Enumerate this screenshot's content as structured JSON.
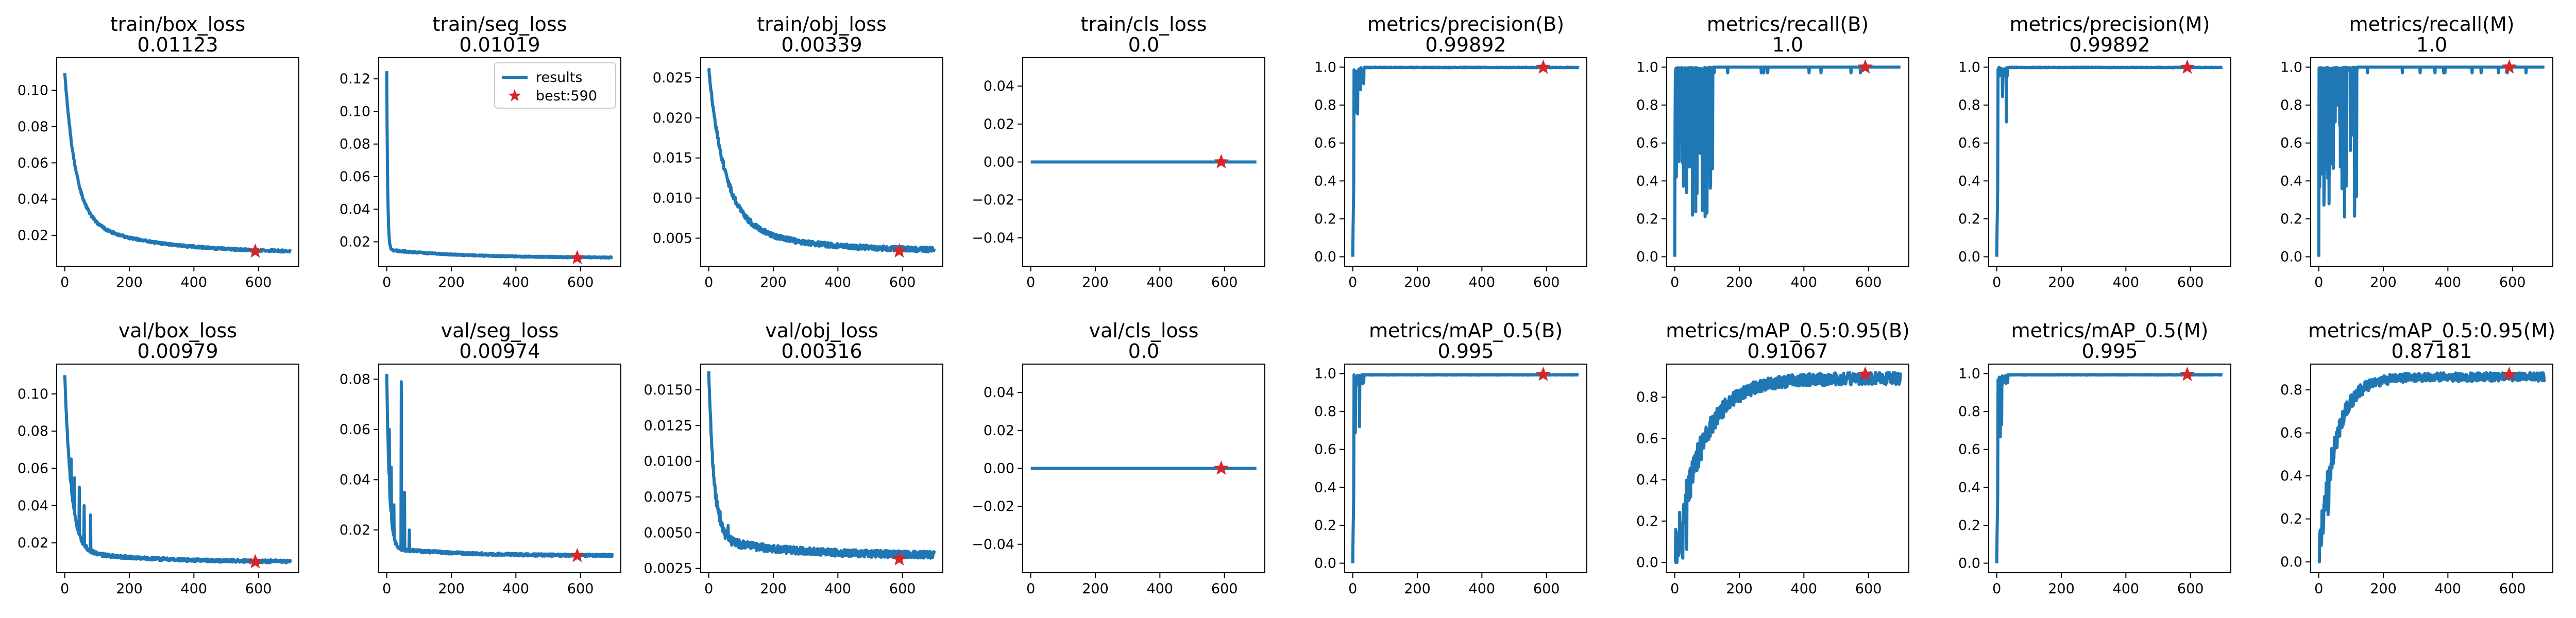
{
  "figure": {
    "series_color": "#1f77b4",
    "best_marker_color": "#d62728",
    "legend": {
      "results_label": "results",
      "best_label": "best:590"
    }
  },
  "chart_data": [
    {
      "type": "line",
      "title": "train/box_loss",
      "subtitle": "0.01123",
      "xlim": [
        -25,
        725
      ],
      "ylim": [
        0.003,
        0.118
      ],
      "xticks": [
        0,
        200,
        400,
        600
      ],
      "yticks": [
        0.02,
        0.04,
        0.06,
        0.08,
        0.1
      ],
      "tick_labels_y": [
        "0.02",
        "0.04",
        "0.06",
        "0.08",
        "0.10"
      ],
      "pattern": "decay",
      "params": {
        "peak": 0.11,
        "end": 0.0105,
        "k": 0.03,
        "tail": 0.02,
        "noise": 0.0006
      },
      "best": {
        "x": 590,
        "y": 0.01123
      },
      "show_legend": false
    },
    {
      "type": "line",
      "title": "train/seg_loss",
      "subtitle": "0.01019",
      "xlim": [
        -25,
        725
      ],
      "ylim": [
        0.005,
        0.133
      ],
      "xticks": [
        0,
        200,
        400,
        600
      ],
      "yticks": [
        0.02,
        0.04,
        0.06,
        0.08,
        0.1,
        0.12
      ],
      "tick_labels_y": [
        "0.02",
        "0.04",
        "0.06",
        "0.08",
        "0.10",
        "0.12"
      ],
      "pattern": "sharp_decay",
      "params": {
        "peak": 0.125,
        "end": 0.0102,
        "k": 0.35,
        "tail": 0.005,
        "noise": 0.0004
      },
      "best": {
        "x": 590,
        "y": 0.01019
      },
      "show_legend": true
    },
    {
      "type": "line",
      "title": "train/obj_loss",
      "subtitle": "0.00339",
      "xlim": [
        -25,
        725
      ],
      "ylim": [
        0.0015,
        0.0275
      ],
      "xticks": [
        0,
        200,
        400,
        600
      ],
      "yticks": [
        0.005,
        0.01,
        0.015,
        0.02,
        0.025
      ],
      "tick_labels_y": [
        "0.005",
        "0.010",
        "0.015",
        "0.020",
        "0.025"
      ],
      "pattern": "decay",
      "params": {
        "peak": 0.026,
        "end": 0.0034,
        "k": 0.02,
        "tail": 0.004,
        "noise": 0.0003
      },
      "best": {
        "x": 590,
        "y": 0.00339
      },
      "show_legend": false
    },
    {
      "type": "line",
      "title": "train/cls_loss",
      "subtitle": "0.0",
      "xlim": [
        -25,
        725
      ],
      "ylim": [
        -0.055,
        0.055
      ],
      "xticks": [
        0,
        200,
        400,
        600
      ],
      "yticks": [
        -0.04,
        -0.02,
        0,
        0.02,
        0.04
      ],
      "tick_labels_y": [
        "−0.04",
        "−0.02",
        "0.00",
        "0.02",
        "0.04"
      ],
      "pattern": "flat",
      "params": {
        "value": 0
      },
      "best": {
        "x": 590,
        "y": 0.0
      },
      "show_legend": false
    },
    {
      "type": "line",
      "title": "metrics/precision(B)",
      "subtitle": "0.99892",
      "xlim": [
        -25,
        725
      ],
      "ylim": [
        -0.05,
        1.05
      ],
      "xticks": [
        0,
        200,
        400,
        600
      ],
      "yticks": [
        0,
        0.2,
        0.4,
        0.6,
        0.8,
        1.0
      ],
      "tick_labels_y": [
        "0.0",
        "0.2",
        "0.4",
        "0.6",
        "0.8",
        "1.0"
      ],
      "pattern": "metric_fast",
      "params": {
        "seed": 3
      },
      "best": {
        "x": 590,
        "y": 0.99892
      },
      "show_legend": false
    },
    {
      "type": "line",
      "title": "metrics/recall(B)",
      "subtitle": "1.0",
      "xlim": [
        -25,
        725
      ],
      "ylim": [
        -0.05,
        1.05
      ],
      "xticks": [
        0,
        200,
        400,
        600
      ],
      "yticks": [
        0,
        0.2,
        0.4,
        0.6,
        0.8,
        1.0
      ],
      "tick_labels_y": [
        "0.0",
        "0.2",
        "0.4",
        "0.6",
        "0.8",
        "1.0"
      ],
      "pattern": "metric_spiky",
      "params": {
        "seed": 5
      },
      "best": {
        "x": 590,
        "y": 1.0
      },
      "show_legend": false
    },
    {
      "type": "line",
      "title": "metrics/precision(M)",
      "subtitle": "0.99892",
      "xlim": [
        -25,
        725
      ],
      "ylim": [
        -0.05,
        1.05
      ],
      "xticks": [
        0,
        200,
        400,
        600
      ],
      "yticks": [
        0,
        0.2,
        0.4,
        0.6,
        0.8,
        1.0
      ],
      "tick_labels_y": [
        "0.0",
        "0.2",
        "0.4",
        "0.6",
        "0.8",
        "1.0"
      ],
      "pattern": "metric_fast",
      "params": {
        "seed": 7
      },
      "best": {
        "x": 590,
        "y": 0.99892
      },
      "show_legend": false
    },
    {
      "type": "line",
      "title": "metrics/recall(M)",
      "subtitle": "1.0",
      "xlim": [
        -25,
        725
      ],
      "ylim": [
        -0.05,
        1.05
      ],
      "xticks": [
        0,
        200,
        400,
        600
      ],
      "yticks": [
        0,
        0.2,
        0.4,
        0.6,
        0.8,
        1.0
      ],
      "tick_labels_y": [
        "0.0",
        "0.2",
        "0.4",
        "0.6",
        "0.8",
        "1.0"
      ],
      "pattern": "metric_spiky",
      "params": {
        "seed": 11
      },
      "best": {
        "x": 590,
        "y": 1.0
      },
      "show_legend": false
    },
    {
      "type": "line",
      "title": "val/box_loss",
      "subtitle": "0.00979",
      "xlim": [
        -25,
        725
      ],
      "ylim": [
        0.004,
        0.116
      ],
      "xticks": [
        0,
        200,
        400,
        600
      ],
      "yticks": [
        0.02,
        0.04,
        0.06,
        0.08,
        0.1
      ],
      "tick_labels_y": [
        "0.02",
        "0.04",
        "0.06",
        "0.08",
        "0.10"
      ],
      "pattern": "decay_spiky",
      "params": {
        "peak": 0.11,
        "end": 0.0098,
        "k": 0.05,
        "tail": 0.006,
        "noise": 0.0008,
        "spikes": [
          [
            20,
            0.065
          ],
          [
            30,
            0.055
          ],
          [
            45,
            0.05
          ],
          [
            60,
            0.04
          ],
          [
            80,
            0.035
          ]
        ]
      },
      "best": {
        "x": 590,
        "y": 0.00979
      },
      "show_legend": false
    },
    {
      "type": "line",
      "title": "val/seg_loss",
      "subtitle": "0.00974",
      "xlim": [
        -25,
        725
      ],
      "ylim": [
        0.003,
        0.086
      ],
      "xticks": [
        0,
        200,
        400,
        600
      ],
      "yticks": [
        0.02,
        0.04,
        0.06,
        0.08
      ],
      "tick_labels_y": [
        "0.02",
        "0.04",
        "0.06",
        "0.08"
      ],
      "pattern": "decay_spiky",
      "params": {
        "peak": 0.082,
        "end": 0.0097,
        "k": 0.12,
        "tail": 0.003,
        "noise": 0.0005,
        "spikes": [
          [
            8,
            0.06
          ],
          [
            14,
            0.045
          ],
          [
            22,
            0.03
          ],
          [
            45,
            0.079
          ],
          [
            55,
            0.035
          ],
          [
            70,
            0.02
          ]
        ]
      },
      "best": {
        "x": 590,
        "y": 0.00974
      },
      "show_legend": false
    },
    {
      "type": "line",
      "title": "val/obj_loss",
      "subtitle": "0.00316",
      "xlim": [
        -25,
        725
      ],
      "ylim": [
        0.0022,
        0.0168
      ],
      "xticks": [
        0,
        200,
        400,
        600
      ],
      "yticks": [
        0.0025,
        0.005,
        0.0075,
        0.01,
        0.0125,
        0.015
      ],
      "tick_labels_y": [
        "0.0025",
        "0.0050",
        "0.0075",
        "0.0100",
        "0.0125",
        "0.0150"
      ],
      "pattern": "decay_spiky",
      "params": {
        "peak": 0.0162,
        "end": 0.0034,
        "k": 0.06,
        "tail": 0.0012,
        "noise": 0.00025,
        "spikes": [
          [
            20,
            0.008
          ],
          [
            35,
            0.0065
          ],
          [
            60,
            0.0055
          ]
        ]
      },
      "best": {
        "x": 590,
        "y": 0.00316
      },
      "show_legend": false
    },
    {
      "type": "line",
      "title": "val/cls_loss",
      "subtitle": "0.0",
      "xlim": [
        -25,
        725
      ],
      "ylim": [
        -0.055,
        0.055
      ],
      "xticks": [
        0,
        200,
        400,
        600
      ],
      "yticks": [
        -0.04,
        -0.02,
        0,
        0.02,
        0.04
      ],
      "tick_labels_y": [
        "−0.04",
        "−0.02",
        "0.00",
        "0.02",
        "0.04"
      ],
      "pattern": "flat",
      "params": {
        "value": 0
      },
      "best": {
        "x": 590,
        "y": 0.0
      },
      "show_legend": false
    },
    {
      "type": "line",
      "title": "metrics/mAP_0.5(B)",
      "subtitle": "0.995",
      "xlim": [
        -25,
        725
      ],
      "ylim": [
        -0.05,
        1.05
      ],
      "xticks": [
        0,
        200,
        400,
        600
      ],
      "yticks": [
        0,
        0.2,
        0.4,
        0.6,
        0.8,
        1.0
      ],
      "tick_labels_y": [
        "0.0",
        "0.2",
        "0.4",
        "0.6",
        "0.8",
        "1.0"
      ],
      "pattern": "metric_fast",
      "params": {
        "seed": 13,
        "cap": 0.995
      },
      "best": {
        "x": 590,
        "y": 0.995
      },
      "show_legend": false
    },
    {
      "type": "line",
      "title": "metrics/mAP_0.5:0.95(B)",
      "subtitle": "0.91067",
      "xlim": [
        -25,
        725
      ],
      "ylim": [
        -0.05,
        0.96
      ],
      "xticks": [
        0,
        200,
        400,
        600
      ],
      "yticks": [
        0,
        0.2,
        0.4,
        0.6,
        0.8
      ],
      "tick_labels_y": [
        "0.0",
        "0.2",
        "0.4",
        "0.6",
        "0.8"
      ],
      "pattern": "metric_rise",
      "params": {
        "start": 0.0,
        "plateau": 0.89,
        "k": 0.012,
        "noise": 0.03,
        "seed": 17
      },
      "best": {
        "x": 590,
        "y": 0.91067
      },
      "show_legend": false
    },
    {
      "type": "line",
      "title": "metrics/mAP_0.5(M)",
      "subtitle": "0.995",
      "xlim": [
        -25,
        725
      ],
      "ylim": [
        -0.05,
        1.05
      ],
      "xticks": [
        0,
        200,
        400,
        600
      ],
      "yticks": [
        0,
        0.2,
        0.4,
        0.6,
        0.8,
        1.0
      ],
      "tick_labels_y": [
        "0.0",
        "0.2",
        "0.4",
        "0.6",
        "0.8",
        "1.0"
      ],
      "pattern": "metric_fast",
      "params": {
        "seed": 19,
        "cap": 0.995
      },
      "best": {
        "x": 590,
        "y": 0.995
      },
      "show_legend": false
    },
    {
      "type": "line",
      "title": "metrics/mAP_0.5:0.95(M)",
      "subtitle": "0.87181",
      "xlim": [
        -25,
        725
      ],
      "ylim": [
        -0.05,
        0.92
      ],
      "xticks": [
        0,
        200,
        400,
        600
      ],
      "yticks": [
        0,
        0.2,
        0.4,
        0.6,
        0.8
      ],
      "tick_labels_y": [
        "0.0",
        "0.2",
        "0.4",
        "0.6",
        "0.8"
      ],
      "pattern": "metric_rise",
      "params": {
        "start": 0.0,
        "plateau": 0.86,
        "k": 0.02,
        "noise": 0.02,
        "seed": 23
      },
      "best": {
        "x": 590,
        "y": 0.87181
      },
      "show_legend": false
    }
  ]
}
